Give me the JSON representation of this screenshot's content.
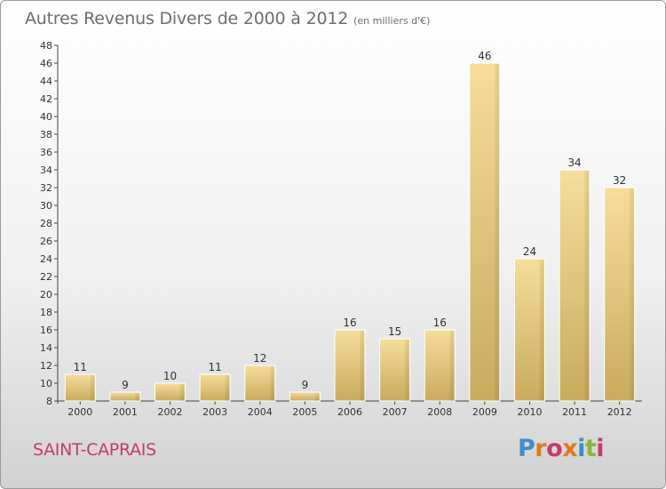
{
  "chart_data": {
    "type": "bar",
    "title": "Autres Revenus Divers de 2000 à 2012",
    "subtitle": "(en milliers d'€)",
    "categories": [
      "2000",
      "2001",
      "2002",
      "2003",
      "2004",
      "2005",
      "2006",
      "2007",
      "2008",
      "2009",
      "2010",
      "2011",
      "2012"
    ],
    "values": [
      11,
      9,
      10,
      11,
      12,
      9,
      16,
      15,
      16,
      46,
      24,
      34,
      32
    ],
    "ylim": [
      8,
      48
    ],
    "yticks": [
      8,
      10,
      12,
      14,
      16,
      18,
      20,
      22,
      24,
      26,
      28,
      30,
      32,
      34,
      36,
      38,
      40,
      42,
      44,
      46,
      48
    ],
    "grid": false,
    "bar_color": "#e8c878"
  },
  "footer": {
    "town": "SAINT-CAPRAIS",
    "logo": "Proxiti",
    "logo_colors": [
      "#3a8fd0",
      "#e07a1a",
      "#c83a6a",
      "#e07a1a",
      "#3a8fd0",
      "#8ab830",
      "#c83a6a"
    ]
  }
}
